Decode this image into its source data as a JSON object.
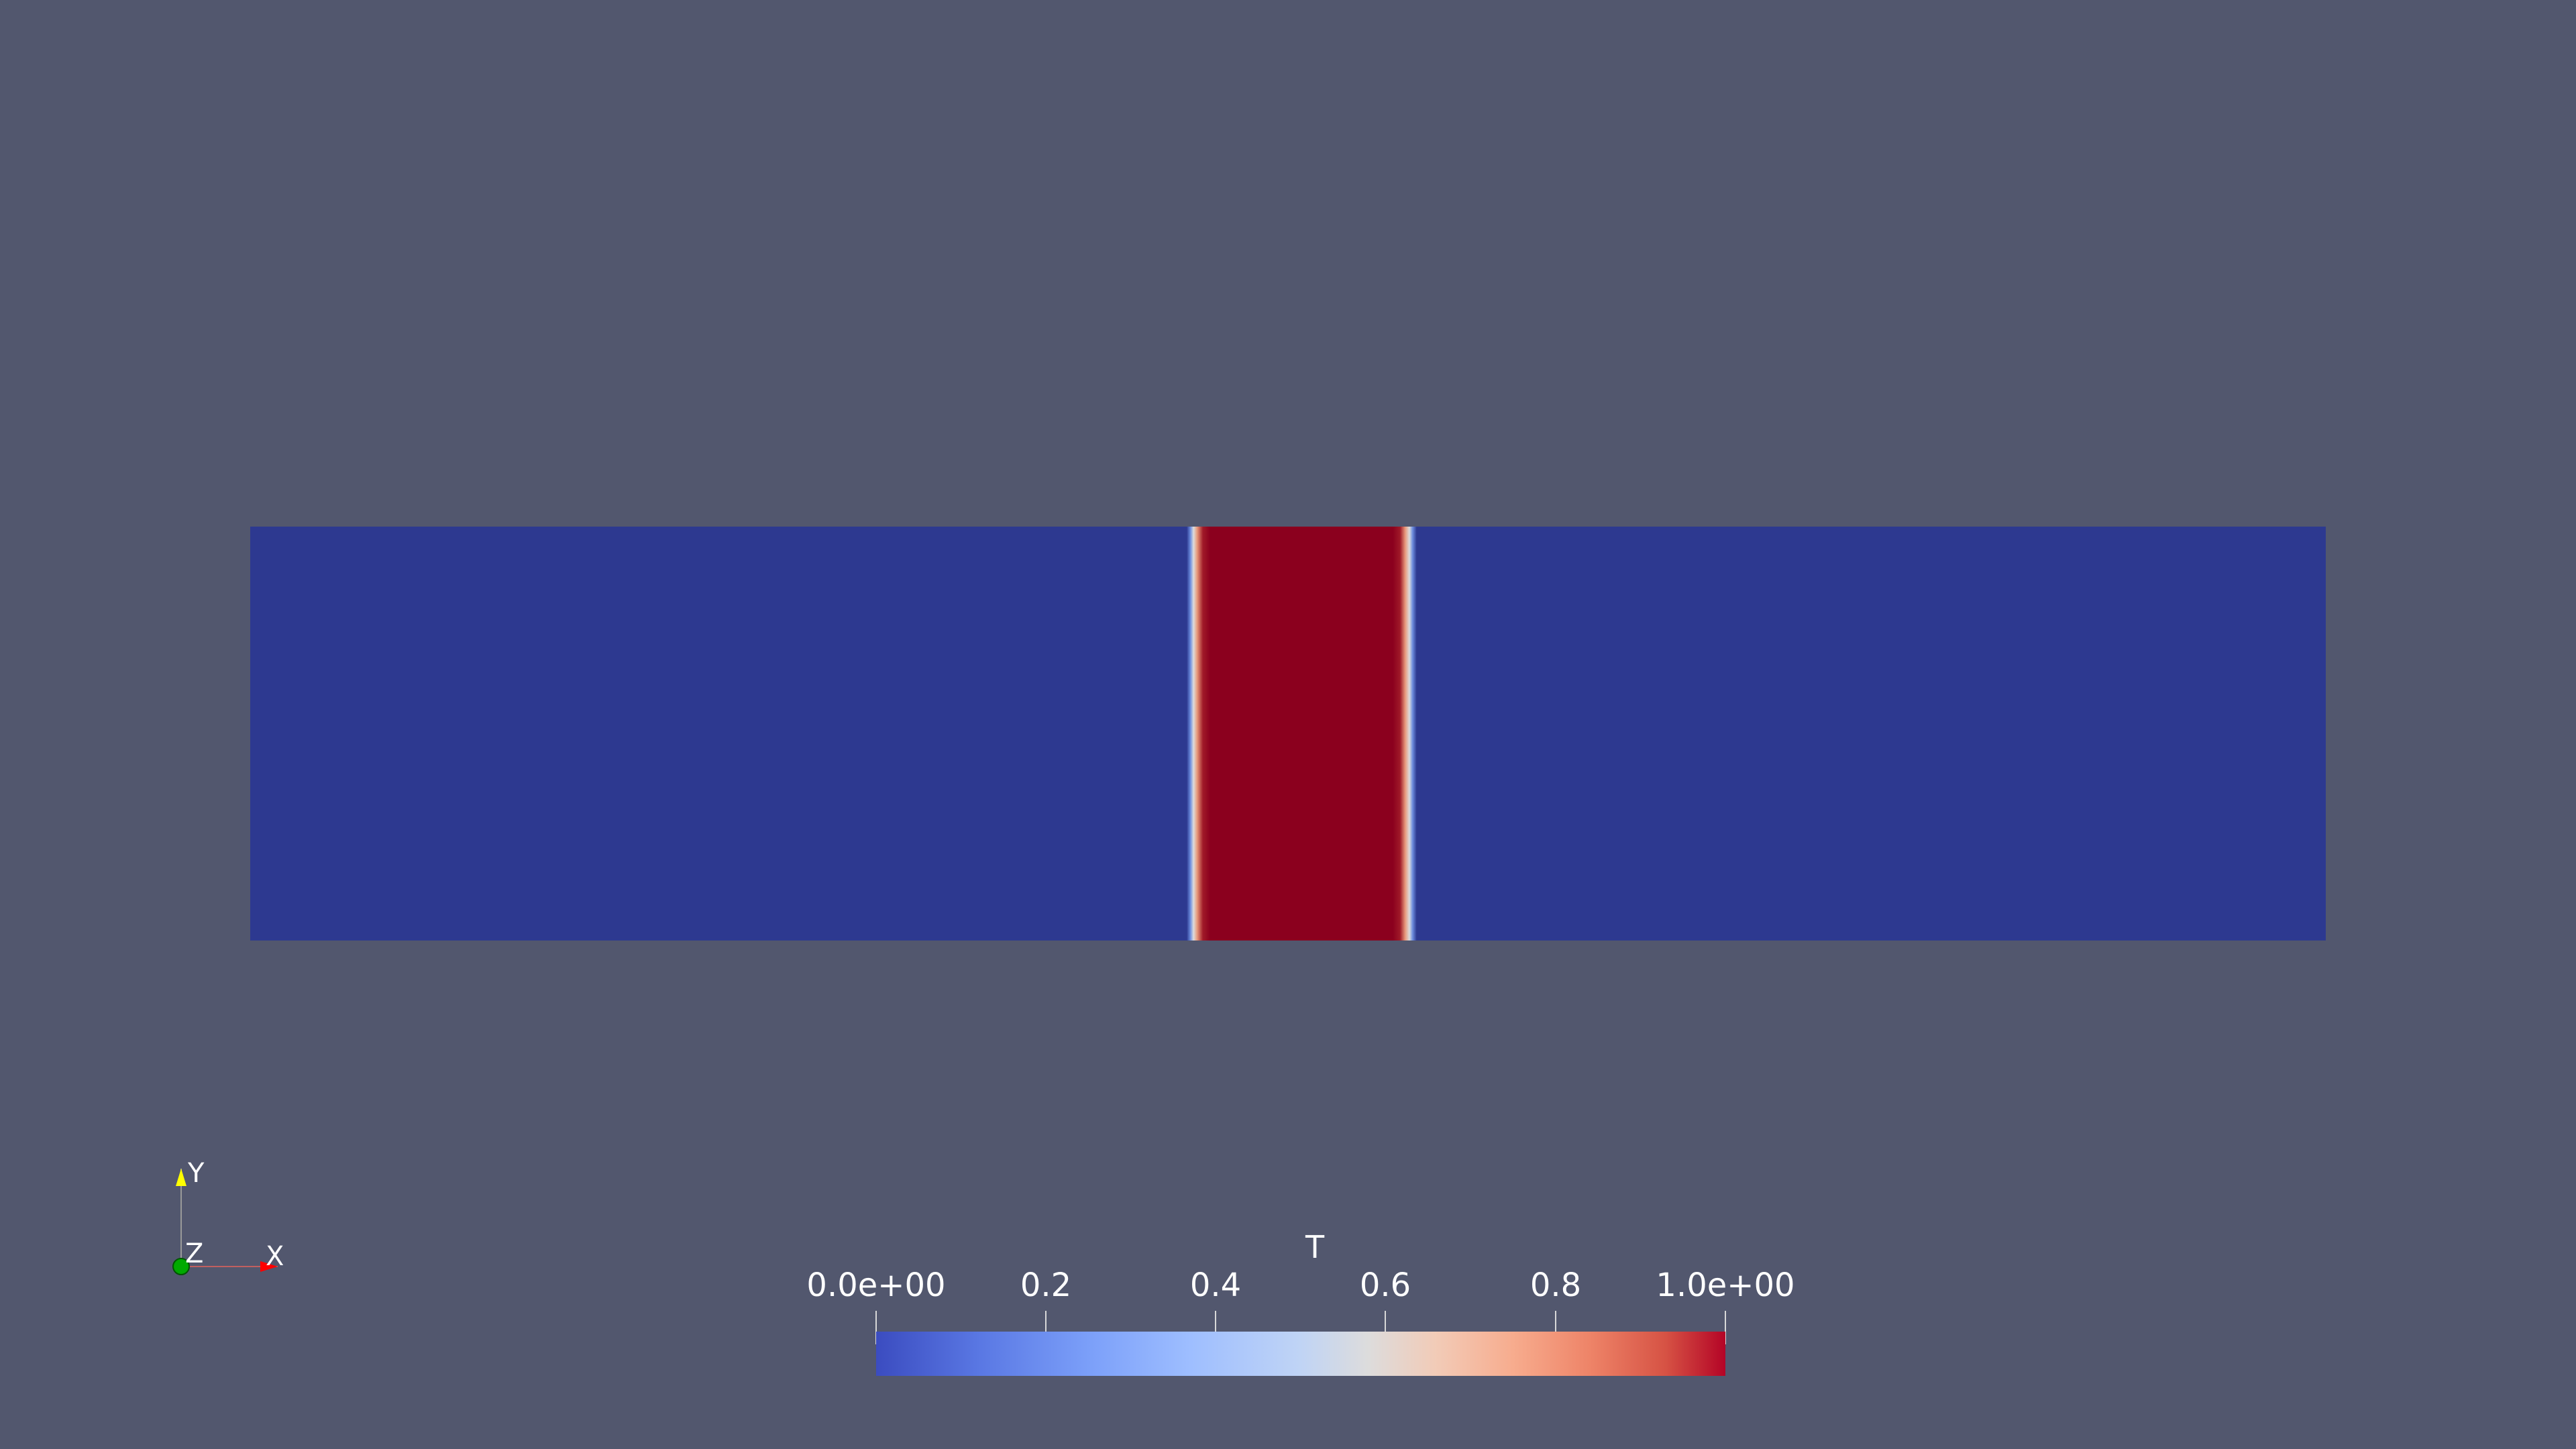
{
  "scene": {
    "background": "#52576e",
    "slab": {
      "low_color": "#2d3990",
      "high_color": "#8b001e",
      "hot_band_range": "≈0.45–0.56 of domain width"
    }
  },
  "colorbar": {
    "title": "T",
    "ticks": [
      {
        "label": "0.0e+00"
      },
      {
        "label": "0.2"
      },
      {
        "label": "0.4"
      },
      {
        "label": "0.6"
      },
      {
        "label": "0.8"
      },
      {
        "label": "1.0e+00"
      }
    ],
    "colormap": "cool-to-warm",
    "min_color": "#3b4cc0",
    "mid_color": "#dddcdc",
    "max_color": "#b40426"
  },
  "orientation_axes": {
    "y_label": "Y",
    "z_label": "Z",
    "x_label": "X",
    "x_color": "#ff0000",
    "y_color": "#ffff00",
    "z_color": "#00aa00"
  }
}
